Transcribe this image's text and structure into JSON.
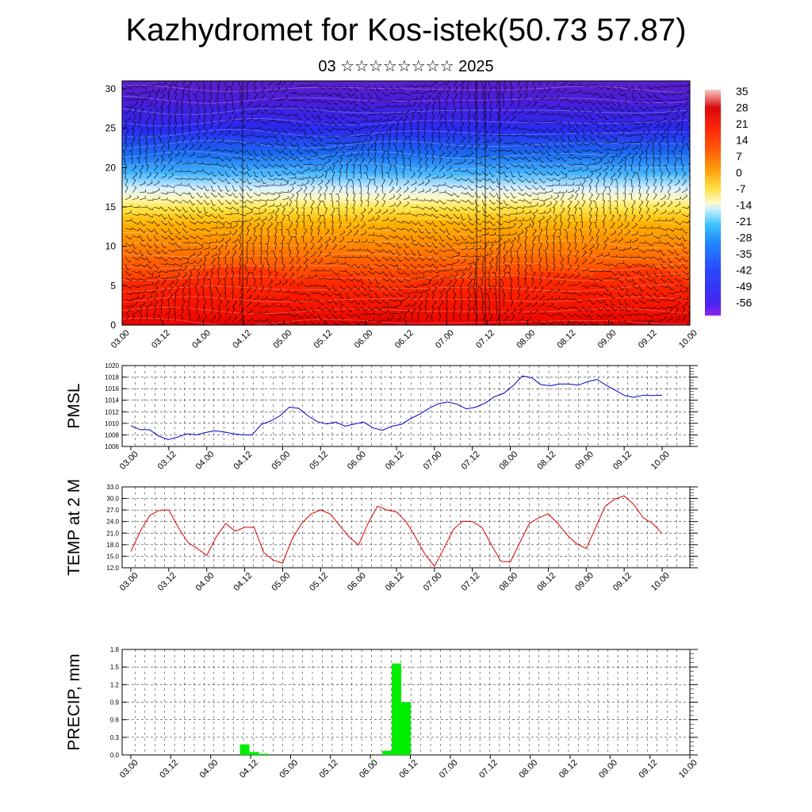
{
  "header": {
    "title": "Kazhydromet for Kos-istek(50.73 57.87)",
    "subtitle": "03 ☆☆☆☆☆☆☆☆ 2025"
  },
  "chart_data": [
    {
      "type": "heatmap",
      "name": "temperature-wind-cross-section",
      "x_tick_labels": [
        "03.00",
        "03.12",
        "04.00",
        "04.12",
        "05.00",
        "05.12",
        "06.00",
        "06.12",
        "07.00",
        "07.12",
        "08.00",
        "08.12",
        "09.00",
        "09.12",
        "10.00"
      ],
      "y_tick_labels": [
        "0",
        "5",
        "10",
        "15",
        "20",
        "25",
        "30"
      ],
      "ylim": [
        0,
        31
      ],
      "colorbar_labels": [
        "35",
        "28",
        "21",
        "14",
        "7",
        "0",
        "-7",
        "-14",
        "-21",
        "-28",
        "-35",
        "-42",
        "-49",
        "-56"
      ],
      "colorbar_range": [
        -63,
        42
      ],
      "wind_barbs": true
    },
    {
      "type": "line",
      "ylabel": "PMSL",
      "x_tick_labels": [
        "03.00",
        "03.12",
        "04.00",
        "04.12",
        "05.00",
        "05.12",
        "06.00",
        "06.12",
        "07.00",
        "07.12",
        "08.00",
        "08.12",
        "09.00",
        "09.12",
        "10.00"
      ],
      "y_tick_labels": [
        "1006",
        "1008",
        "1010",
        "1012",
        "1014",
        "1016",
        "1018",
        "1020"
      ],
      "ylim": [
        1006,
        1020
      ],
      "color": "#0000cc",
      "values": [
        1009.6,
        1008.9,
        1008.9,
        1007.8,
        1007.2,
        1007.6,
        1008.2,
        1008.0,
        1008.4,
        1008.7,
        1008.5,
        1008.2,
        1008.0,
        1008.0,
        1009.8,
        1010.4,
        1011.3,
        1012.8,
        1012.6,
        1011.3,
        1010.3,
        1009.9,
        1010.2,
        1009.5,
        1009.9,
        1010.2,
        1009.2,
        1008.8,
        1009.5,
        1009.8,
        1010.8,
        1011.6,
        1012.6,
        1013.4,
        1013.7,
        1013.3,
        1012.5,
        1012.8,
        1013.5,
        1014.6,
        1015.2,
        1016.5,
        1018.2,
        1017.9,
        1016.7,
        1016.5,
        1016.8,
        1016.8,
        1016.6,
        1017.2,
        1017.6,
        1016.6,
        1015.7,
        1014.8,
        1014.5,
        1014.9,
        1014.8,
        1014.9
      ]
    },
    {
      "type": "line",
      "ylabel": "TEMP at 2 M",
      "x_tick_labels": [
        "03.00",
        "03.12",
        "04.00",
        "04.12",
        "05.00",
        "05.12",
        "06.00",
        "06.12",
        "07.00",
        "07.12",
        "08.00",
        "08.12",
        "09.00",
        "09.12",
        "10.00"
      ],
      "y_tick_labels": [
        "12.0",
        "15.0",
        "18.0",
        "21.0",
        "24.0",
        "27.0",
        "30.0",
        "33.0"
      ],
      "ylim": [
        12,
        33
      ],
      "color": "#dd0000",
      "values": [
        16.2,
        21.5,
        25.6,
        26.9,
        27.0,
        22.5,
        18.6,
        17.0,
        15.2,
        20.0,
        23.5,
        21.5,
        22.5,
        22.5,
        16.0,
        14.0,
        13.2,
        19.5,
        23.5,
        26.0,
        27.0,
        26.0,
        23.0,
        20.0,
        17.9,
        23.5,
        28.0,
        27.0,
        26.5,
        24.0,
        20.0,
        15.5,
        12.4,
        17.0,
        22.0,
        24.1,
        24.0,
        22.5,
        18.0,
        13.7,
        13.5,
        18.5,
        23.5,
        25.0,
        26.0,
        23.5,
        20.5,
        18.2,
        17.0,
        22.5,
        28.0,
        29.8,
        30.7,
        28.5,
        25.0,
        23.5,
        20.9
      ]
    },
    {
      "type": "bar",
      "ylabel": "PRECIP, mm",
      "x_tick_labels": [
        "03.00",
        "03.12",
        "04.00",
        "04.12",
        "05.00",
        "05.12",
        "06.00",
        "06.12",
        "07.00",
        "07.12",
        "08.00",
        "08.12",
        "09.00",
        "09.12",
        "10.00"
      ],
      "y_tick_labels": [
        "0.0",
        "0.3",
        "0.6",
        "0.9",
        "1.2",
        "1.5",
        "1.8"
      ],
      "ylim": [
        0,
        1.8
      ],
      "color": "#00ee00",
      "values": [
        0,
        0,
        0,
        0,
        0,
        0,
        0,
        0,
        0,
        0,
        0,
        0,
        0.18,
        0.05,
        0.02,
        0,
        0,
        0,
        0,
        0,
        0,
        0,
        0,
        0,
        0,
        0,
        0,
        0.07,
        1.56,
        0.9,
        0,
        0,
        0,
        0,
        0,
        0,
        0,
        0,
        0,
        0,
        0,
        0,
        0,
        0,
        0,
        0,
        0,
        0,
        0,
        0,
        0,
        0,
        0,
        0,
        0,
        0,
        0
      ]
    }
  ]
}
